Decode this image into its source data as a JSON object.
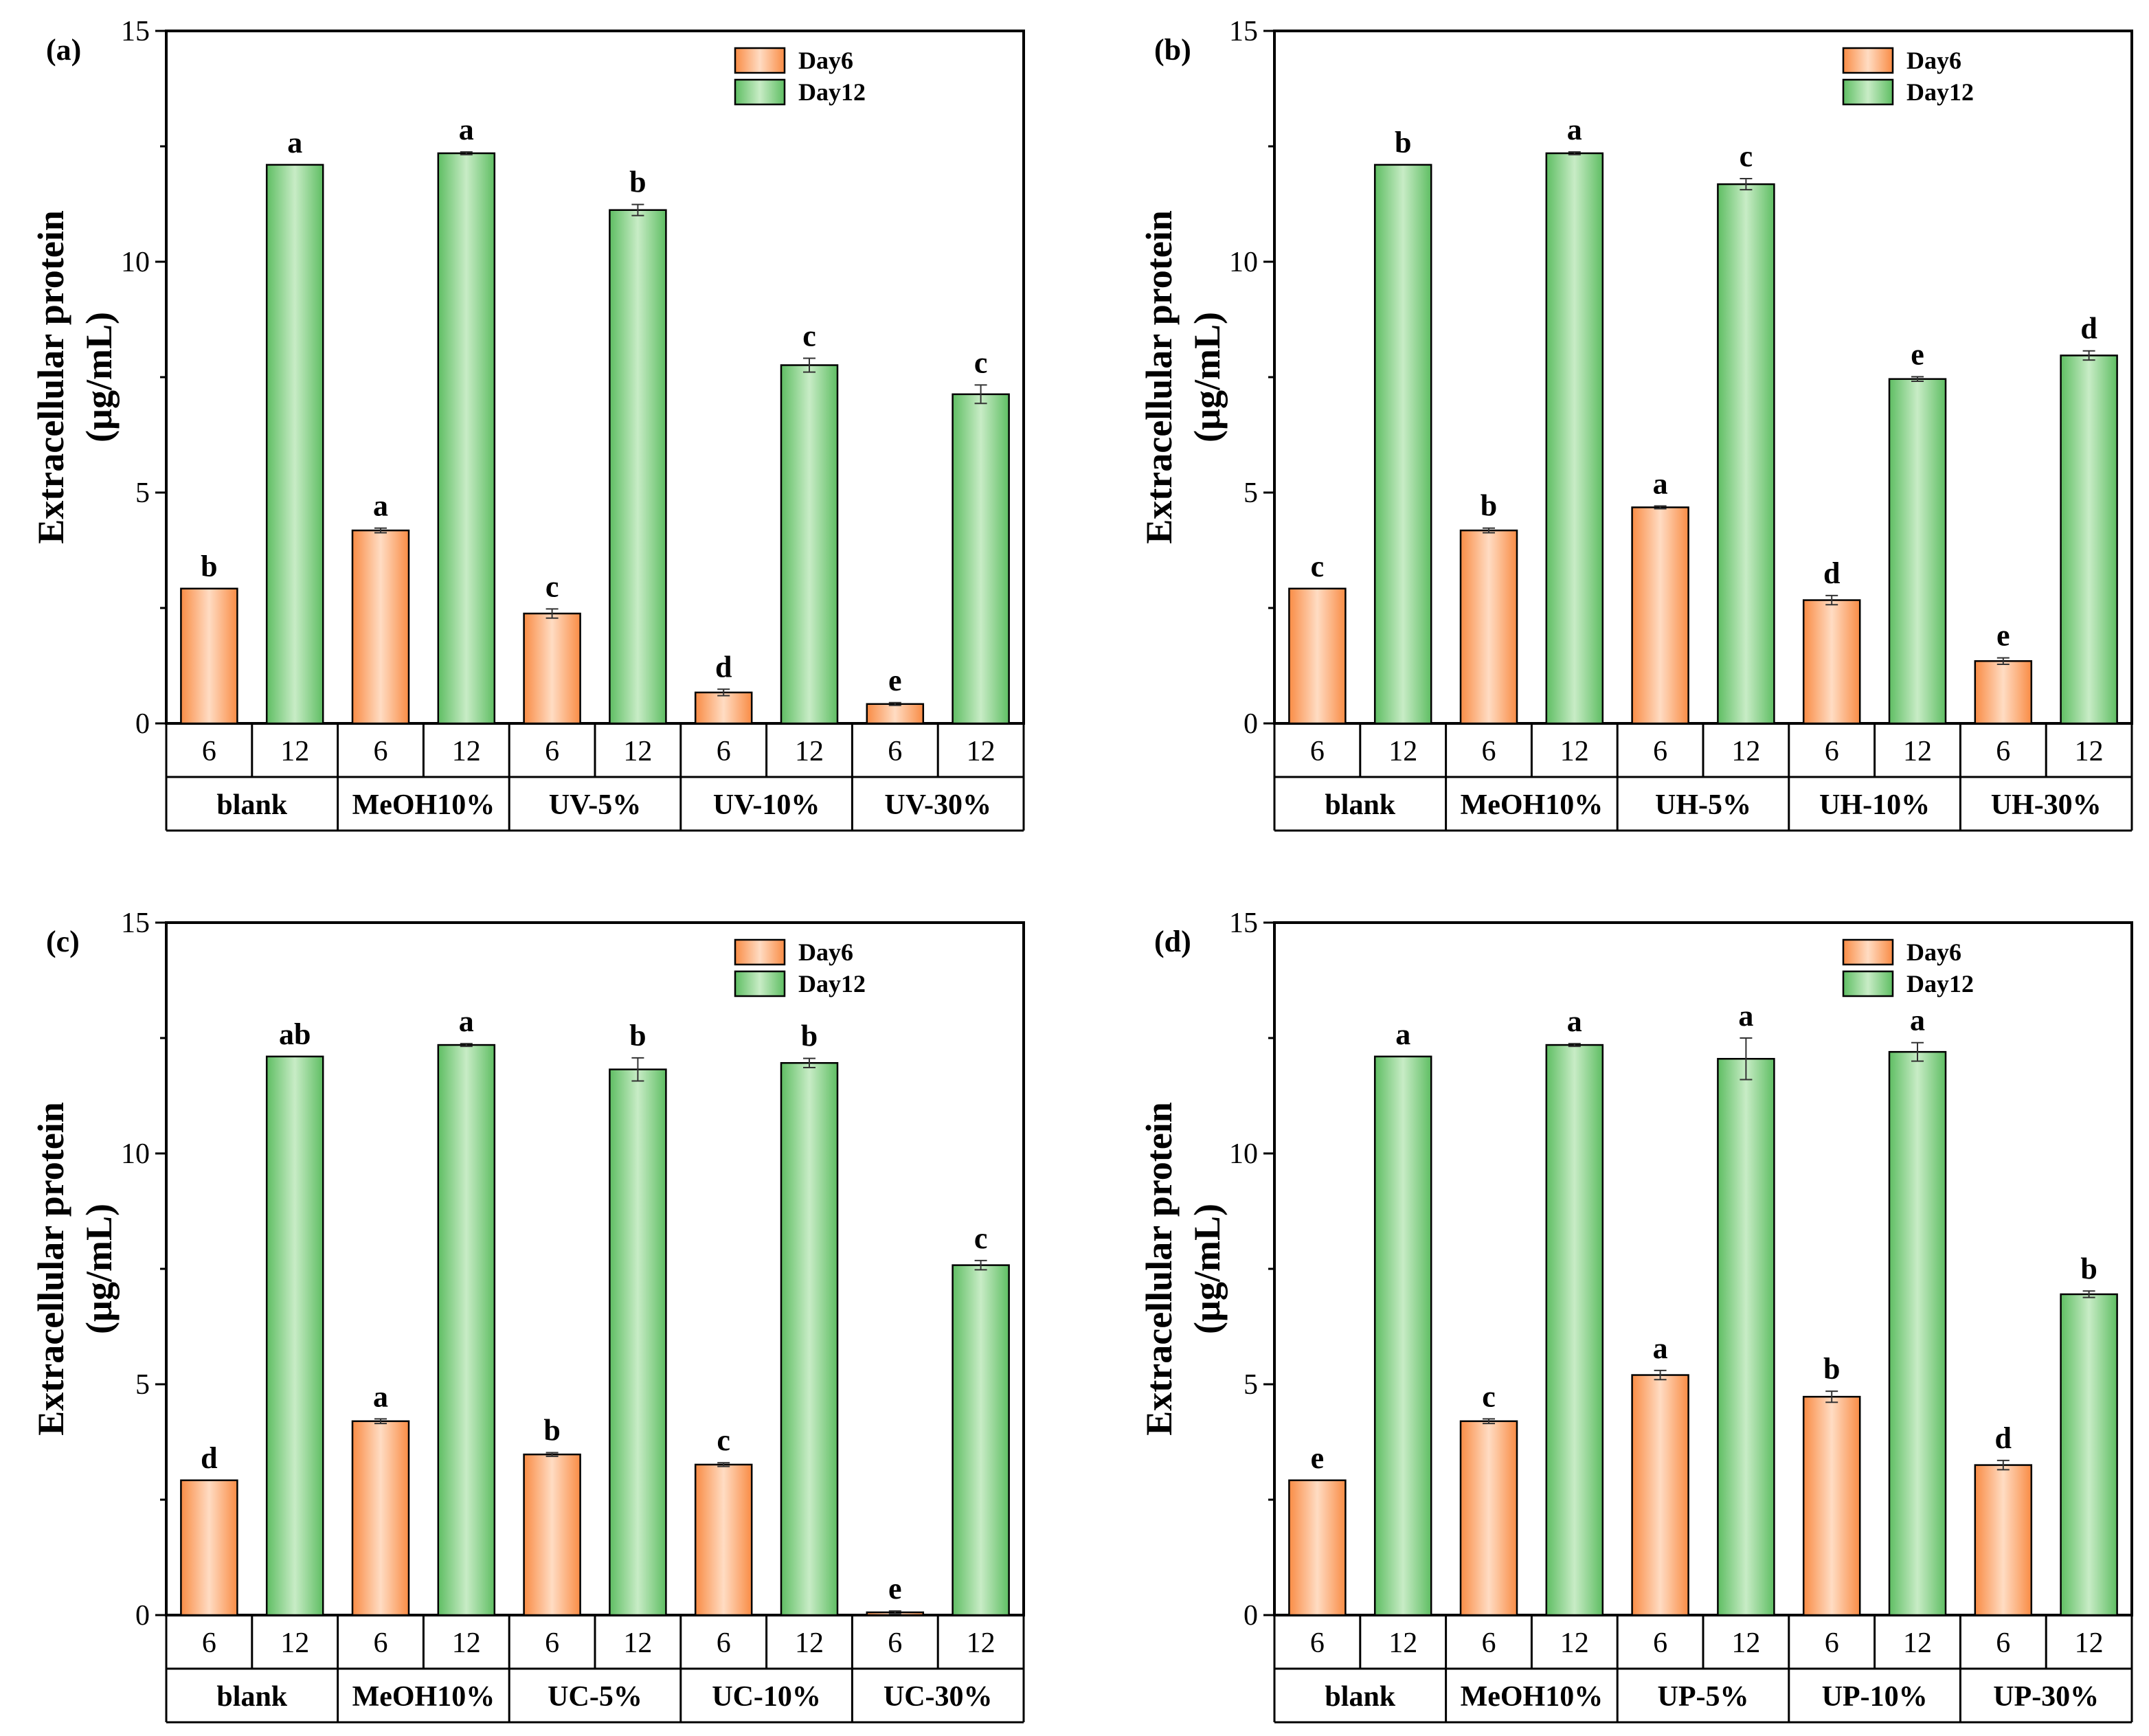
{
  "y_axis": {
    "label_line1": "Extracellular protein",
    "label_line2": "(µg/mL)"
  },
  "legend": [
    "Day6",
    "Day12"
  ],
  "colors": {
    "day6_fill": "#fba468",
    "day6_light": "#ffd9bd",
    "day12_fill": "#7fce81",
    "day12_light": "#c6ecc5",
    "axis": "#000000"
  },
  "chart_data": [
    {
      "type": "bar",
      "panel": "(a)",
      "ylim": [
        0,
        15
      ],
      "yticks": [
        "0",
        "5",
        "10",
        "15"
      ],
      "day_labels": [
        "6",
        "12"
      ],
      "groups": [
        "blank",
        "MeOH10%",
        "UV-5%",
        "UV-10%",
        "UV-30%"
      ],
      "series": [
        {
          "name": "Day6",
          "values": [
            2.92,
            4.18,
            2.38,
            0.67,
            0.42
          ],
          "errors": [
            0.0,
            0.05,
            0.1,
            0.07,
            0.03
          ],
          "letters": [
            "b",
            "a",
            "c",
            "d",
            "e"
          ]
        },
        {
          "name": "Day12",
          "values": [
            12.1,
            12.35,
            11.12,
            7.76,
            7.13
          ],
          "errors": [
            0.0,
            0.03,
            0.12,
            0.15,
            0.2
          ],
          "letters": [
            "a",
            "a",
            "b",
            "c",
            "c"
          ]
        }
      ]
    },
    {
      "type": "bar",
      "panel": "(b)",
      "ylim": [
        0,
        15
      ],
      "yticks": [
        "0",
        "5",
        "10",
        "15"
      ],
      "day_labels": [
        "6",
        "12"
      ],
      "groups": [
        "blank",
        "MeOH10%",
        "UH-5%",
        "UH-10%",
        "UH-30%"
      ],
      "series": [
        {
          "name": "Day6",
          "values": [
            2.92,
            4.18,
            4.68,
            2.67,
            1.35
          ],
          "errors": [
            0.0,
            0.05,
            0.03,
            0.1,
            0.07
          ],
          "letters": [
            "c",
            "b",
            "a",
            "d",
            "e"
          ]
        },
        {
          "name": "Day12",
          "values": [
            12.1,
            12.35,
            11.68,
            7.46,
            7.97
          ],
          "errors": [
            0.0,
            0.03,
            0.12,
            0.05,
            0.1
          ],
          "letters": [
            "b",
            "a",
            "c",
            "e",
            "d"
          ]
        }
      ]
    },
    {
      "type": "bar",
      "panel": "(c)",
      "ylim": [
        0,
        15
      ],
      "yticks": [
        "0",
        "5",
        "10",
        "15"
      ],
      "day_labels": [
        "6",
        "12"
      ],
      "groups": [
        "blank",
        "MeOH10%",
        "UC-5%",
        "UC-10%",
        "UC-30%"
      ],
      "series": [
        {
          "name": "Day6",
          "values": [
            2.92,
            4.2,
            3.48,
            3.26,
            0.06
          ],
          "errors": [
            0.0,
            0.05,
            0.04,
            0.04,
            0.03
          ],
          "letters": [
            "d",
            "a",
            "b",
            "c",
            "e"
          ]
        },
        {
          "name": "Day12",
          "values": [
            12.1,
            12.35,
            11.82,
            11.96,
            7.58
          ],
          "errors": [
            0.0,
            0.03,
            0.25,
            0.1,
            0.1
          ],
          "letters": [
            "ab",
            "a",
            "b",
            "b",
            "c"
          ]
        }
      ]
    },
    {
      "type": "bar",
      "panel": "(d)",
      "ylim": [
        0,
        15
      ],
      "yticks": [
        "0",
        "5",
        "10",
        "15"
      ],
      "day_labels": [
        "6",
        "12"
      ],
      "groups": [
        "blank",
        "MeOH10%",
        "UP-5%",
        "UP-10%",
        "UP-30%"
      ],
      "series": [
        {
          "name": "Day6",
          "values": [
            2.92,
            4.2,
            5.2,
            4.73,
            3.25
          ],
          "errors": [
            0.0,
            0.05,
            0.1,
            0.12,
            0.1
          ],
          "letters": [
            "e",
            "c",
            "a",
            "b",
            "d"
          ]
        },
        {
          "name": "Day12",
          "values": [
            12.1,
            12.35,
            12.05,
            12.2,
            6.95
          ],
          "errors": [
            0.0,
            0.03,
            0.45,
            0.2,
            0.07
          ],
          "letters": [
            "a",
            "a",
            "a",
            "a",
            "b"
          ]
        }
      ]
    }
  ]
}
